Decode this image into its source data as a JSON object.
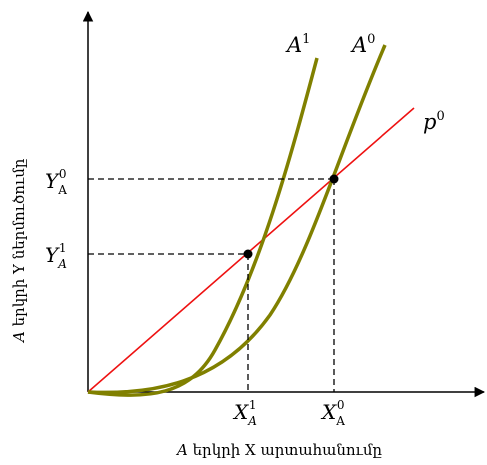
{
  "axes": {
    "x_title_var": "A",
    "x_title_text": " երկրի X արտահանումը",
    "y_title_var": "A",
    "y_title_text": " երկրի Y ներմուծումը"
  },
  "curves": {
    "a1": {
      "base": "A",
      "sup": "1"
    },
    "a0": {
      "base": "A",
      "sup": "0"
    },
    "p0": {
      "base": "p",
      "sup": "0"
    }
  },
  "ticks": {
    "x1": {
      "base": "X",
      "sub": "A",
      "sup": "1"
    },
    "x0": {
      "base": "X",
      "sub": "A",
      "sup": "0"
    },
    "y0": {
      "base": "Y",
      "sub": "A",
      "sup": "0"
    },
    "y1": {
      "base": "Y",
      "sub": "A",
      "sup": "1"
    }
  },
  "colors": {
    "curve": "#808000",
    "line": "#ee1111",
    "axis": "#000000"
  }
}
